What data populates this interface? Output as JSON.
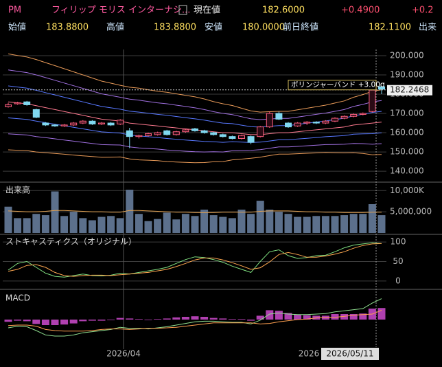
{
  "header": {
    "symbol": "PM",
    "name": "フィリップ モリス インターナシ...",
    "price_label": "現在値",
    "price": "182.6000",
    "change": "+0.4900",
    "change_pct": "+0.2",
    "open_label": "始値",
    "open": "183.8800",
    "high_label": "高値",
    "high": "183.8800",
    "low_label": "安値",
    "low": "180.0000",
    "prev_label": "前日終値",
    "prev": "182.1100",
    "volume_label": "出来"
  },
  "x_labels": [
    "2026/04",
    "2026"
  ],
  "crosshair": {
    "date": "2026/05/11",
    "value": 182.2468,
    "band_label": "ボリンジャーバンド +3.00σ"
  },
  "chart_data": [
    {
      "type": "candlestick",
      "ylim": [
        135.4,
        203.2
      ],
      "yticks": [
        {
          "value": 140,
          "label": "140.000"
        },
        {
          "value": 150,
          "label": "150.000"
        },
        {
          "value": 160,
          "label": "160.000"
        },
        {
          "value": 170,
          "label": "170.000"
        },
        {
          "value": 180,
          "label": "180.000"
        },
        {
          "value": 190,
          "label": "190.000"
        },
        {
          "value": 200,
          "label": "200.000"
        }
      ],
      "up_color": "#ff6080",
      "down_color": "#80d8f0",
      "open": [
        173.5,
        175,
        176,
        172,
        165,
        164,
        163.5,
        164,
        165,
        166,
        164.5,
        165,
        164.5,
        161,
        158,
        158.5,
        159,
        161,
        159,
        160.5,
        162,
        161,
        160,
        159,
        158,
        157,
        158,
        158,
        163,
        170,
        165,
        163.5,
        165,
        165.5,
        165,
        166,
        167.5,
        168.5,
        169.5,
        171,
        183.88
      ],
      "high": [
        175.5,
        176,
        176.5,
        172.5,
        165.5,
        164.5,
        164.5,
        165.5,
        166.5,
        166.5,
        165.5,
        165.5,
        167,
        162.5,
        159,
        160,
        160.5,
        161.5,
        161,
        162,
        162.5,
        161.5,
        160.5,
        159.5,
        158.5,
        159,
        158.5,
        163.5,
        171,
        171,
        165.5,
        165.5,
        166,
        166,
        166.5,
        168,
        169,
        170,
        170.5,
        182.5,
        183.88
      ],
      "low": [
        173,
        174.5,
        174,
        167.5,
        163.5,
        163,
        163,
        163.5,
        164.5,
        164,
        164,
        163.5,
        164,
        152,
        157,
        158,
        158.5,
        158.5,
        158.5,
        160,
        160.5,
        159.5,
        158.5,
        157.5,
        156.5,
        156.5,
        154,
        157.5,
        162.5,
        166.5,
        162.5,
        163,
        164,
        164.5,
        164.5,
        165.5,
        167,
        168,
        169,
        170.5,
        180
      ],
      "close": [
        174.5,
        175.5,
        174.5,
        168,
        164,
        163.5,
        164,
        165,
        166,
        164.5,
        165,
        164,
        166.5,
        158,
        158.5,
        159.5,
        160,
        159,
        160.5,
        161.5,
        161,
        160,
        159,
        158,
        157,
        158.5,
        155,
        163,
        170,
        167,
        163,
        165,
        165.5,
        165,
        166,
        167.5,
        168.5,
        169.5,
        170,
        182.11,
        182.6
      ],
      "series": [
        {
          "color": "#e89a58",
          "values": [
            200.9,
            200.1,
            199.3,
            198,
            196.4,
            194.8,
            193.2,
            191.6,
            190,
            188.4,
            186.8,
            185.7,
            184.6,
            183.6,
            183.1,
            182.3,
            181.5,
            181,
            180.2,
            179.4,
            178.6,
            177.5,
            176.1,
            175,
            174.1,
            172.7,
            171.3,
            170.7,
            170.9,
            171.1,
            171.1,
            171.9,
            172.7,
            173.5,
            174.3,
            175.4,
            176.5,
            178.4,
            179.8,
            181.5,
            182.3
          ]
        },
        {
          "color": "#a070e0",
          "values": [
            192.6,
            191.9,
            191.2,
            190,
            188.6,
            187.2,
            185.8,
            184.4,
            183,
            181.6,
            180.2,
            179.3,
            178.4,
            177.4,
            176.9,
            176.2,
            175.5,
            175,
            174.3,
            173.6,
            172.9,
            172,
            170.9,
            170,
            169.4,
            168.3,
            167.2,
            166.8,
            167.1,
            167.4,
            167.4,
            168.1,
            168.8,
            169.5,
            170.2,
            171.1,
            172,
            173.6,
            174.7,
            176,
            176.7
          ]
        },
        {
          "color": "#5878ff",
          "values": [
            184.3,
            183.7,
            183.1,
            182,
            180.8,
            179.6,
            178.4,
            177.2,
            176,
            174.8,
            173.6,
            172.9,
            172.2,
            171.2,
            170.7,
            170.1,
            169.5,
            169,
            168.4,
            167.8,
            167.2,
            166.5,
            165.7,
            165,
            164.7,
            163.9,
            163.1,
            162.9,
            163.3,
            163.7,
            163.7,
            164.3,
            164.9,
            165.5,
            166.1,
            166.8,
            167.5,
            168.8,
            169.6,
            170.5,
            171.1
          ]
        },
        {
          "color": "#ff7a90",
          "values": [
            176,
            175.5,
            175,
            174,
            173,
            172,
            171,
            170,
            169,
            168,
            167,
            166.5,
            166,
            165,
            164.5,
            164,
            163.5,
            163,
            162.5,
            162,
            161.5,
            161,
            160.5,
            160,
            160,
            159.5,
            159,
            159,
            159.5,
            160,
            160,
            160.5,
            161,
            161.5,
            162,
            162.5,
            163,
            164,
            164.5,
            165,
            165.5
          ]
        },
        {
          "color": "#5878ff",
          "values": [
            167.7,
            167.3,
            166.9,
            166,
            165.2,
            164.4,
            163.6,
            162.8,
            162,
            161.2,
            160.4,
            160.1,
            159.8,
            158.8,
            158.3,
            157.9,
            157.5,
            157,
            156.6,
            156.2,
            155.8,
            155.5,
            155.3,
            155,
            155.3,
            155.1,
            154.9,
            155.1,
            155.7,
            156.3,
            156.3,
            156.7,
            157.1,
            157.5,
            157.9,
            158.2,
            158.5,
            159.2,
            159.4,
            159.5,
            159.9
          ]
        },
        {
          "color": "#a070e0",
          "values": [
            159.4,
            159.1,
            158.8,
            158,
            157.4,
            156.8,
            156.2,
            155.6,
            155,
            154.4,
            153.8,
            153.7,
            153.6,
            152.6,
            152.1,
            151.8,
            151.5,
            151,
            150.7,
            150.4,
            150.1,
            150,
            150.1,
            150,
            150.6,
            150.7,
            150.8,
            151.2,
            151.9,
            152.6,
            152.6,
            152.9,
            153.2,
            153.5,
            153.8,
            153.9,
            154,
            154.4,
            154.3,
            154,
            154.3
          ]
        },
        {
          "color": "#e89a58",
          "values": [
            151.1,
            150.9,
            150.7,
            150,
            149.6,
            149.2,
            148.8,
            148.4,
            148,
            147.6,
            147.2,
            147.3,
            147.4,
            146.4,
            145.9,
            145.7,
            145.5,
            145,
            144.8,
            144.6,
            144.4,
            144.5,
            144.9,
            145,
            145.9,
            146.3,
            146.7,
            147.3,
            148.1,
            148.9,
            148.9,
            149.1,
            149.3,
            149.5,
            149.7,
            149.6,
            149.5,
            149.6,
            149.2,
            148.5,
            148.7
          ]
        }
      ]
    },
    {
      "type": "bar",
      "title": "出来高",
      "ylim": [
        0,
        11500000
      ],
      "yticks": [
        {
          "value": 5000000,
          "label": "5,000,000"
        },
        {
          "value": 10000000,
          "label": "10,000K"
        }
      ],
      "color": "#5c708c",
      "values": [
        6200000,
        3500000,
        3500000,
        4500000,
        4200000,
        9800000,
        4000000,
        5000000,
        3500000,
        3000000,
        3800000,
        4000000,
        3500000,
        10200000,
        4500000,
        2800000,
        3300000,
        4800000,
        3200000,
        4500000,
        4000000,
        5500000,
        4200000,
        3800000,
        3500000,
        5500000,
        4500000,
        7600000,
        5500000,
        5000000,
        4500000,
        3800000,
        3800000,
        4000000,
        4000000,
        4000000,
        4200000,
        4500000,
        4500000,
        6800000,
        4200000
      ],
      "series": [
        {
          "color": "#e0a050",
          "values": [
            5200000,
            5100000,
            5000000,
            5000000,
            5100000,
            5300000,
            5300000,
            5200000,
            5100000,
            5000000,
            5000000,
            4900000,
            4900000,
            5300000,
            5300000,
            5200000,
            5100000,
            5000000,
            4900000,
            4900000,
            4800000,
            4800000,
            4800000,
            4900000,
            4900000,
            4900000,
            4900000,
            5100000,
            5200000,
            5200000,
            5200000,
            5100000,
            5000000,
            5000000,
            4900000,
            4900000,
            4800000,
            4800000,
            4800000,
            4900000,
            4900000
          ]
        }
      ]
    },
    {
      "type": "line",
      "title": "ストキャスティクス（オリジナル）",
      "ylim": [
        -16,
        116
      ],
      "yticks": [
        0,
        50,
        100
      ],
      "series": [
        {
          "color": "#80e080",
          "values": [
            28,
            45,
            50,
            35,
            20,
            12,
            10,
            14,
            18,
            14,
            13,
            15,
            20,
            18,
            22,
            26,
            30,
            35,
            45,
            55,
            62,
            60,
            55,
            48,
            38,
            30,
            22,
            50,
            75,
            80,
            65,
            58,
            60,
            65,
            66,
            75,
            85,
            92,
            95,
            98,
            96
          ]
        },
        {
          "color": "#ffa850",
          "values": [
            25,
            30,
            40,
            42,
            35,
            22,
            14,
            12,
            14,
            15,
            15,
            14,
            16,
            18,
            20,
            22,
            26,
            30,
            37,
            45,
            54,
            59,
            59,
            54,
            47,
            39,
            30,
            34,
            49,
            68,
            73,
            68,
            61,
            61,
            64,
            69,
            75,
            84,
            91,
            95,
            96
          ]
        }
      ]
    },
    {
      "type": "macd",
      "title": "MACD",
      "ylim": [
        -5,
        5
      ],
      "color": "#b040b0",
      "values": [
        -0.4,
        -0.2,
        -0.3,
        -0.8,
        -1.0,
        -1.0,
        -0.9,
        -0.7,
        -0.3,
        -0.2,
        -0.2,
        -0.1,
        0.3,
        0.2,
        0.1,
        -0.1,
        0.1,
        0.2,
        0.4,
        0.5,
        0.6,
        0.5,
        0.3,
        0.2,
        0.1,
        0.1,
        -0.2,
        0.7,
        1.7,
        1.6,
        1.2,
        0.9,
        0.8,
        0.7,
        0.7,
        1.0,
        1.0,
        1.0,
        1.1,
        2.0,
        2.1
      ],
      "series": [
        {
          "color": "#90e090",
          "values": [
            -1.5,
            -1.2,
            -1.3,
            -2.0,
            -2.8,
            -3.0,
            -3.0,
            -2.8,
            -2.4,
            -2.2,
            -2.0,
            -1.8,
            -1.4,
            -1.6,
            -1.6,
            -1.7,
            -1.5,
            -1.3,
            -1.0,
            -0.7,
            -0.4,
            -0.3,
            -0.3,
            -0.4,
            -0.5,
            -0.5,
            -0.8,
            -0.1,
            1.0,
            1.2,
            1.0,
            0.9,
            0.9,
            1.0,
            1.1,
            1.4,
            1.6,
            1.8,
            2.0,
            3.0,
            3.8
          ]
        },
        {
          "color": "#ffa050",
          "values": [
            -1.1,
            -1.0,
            -1.0,
            -1.2,
            -1.8,
            -2.0,
            -2.1,
            -2.1,
            -2.1,
            -2.0,
            -1.8,
            -1.7,
            -1.7,
            -1.8,
            -1.7,
            -1.6,
            -1.6,
            -1.5,
            -1.4,
            -1.2,
            -1.0,
            -0.8,
            -0.6,
            -0.6,
            -0.6,
            -0.6,
            -0.6,
            -0.8,
            -0.7,
            -0.4,
            -0.2,
            0.0,
            0.1,
            0.3,
            0.4,
            0.4,
            0.6,
            0.8,
            0.9,
            1.0,
            1.7
          ]
        }
      ]
    }
  ]
}
